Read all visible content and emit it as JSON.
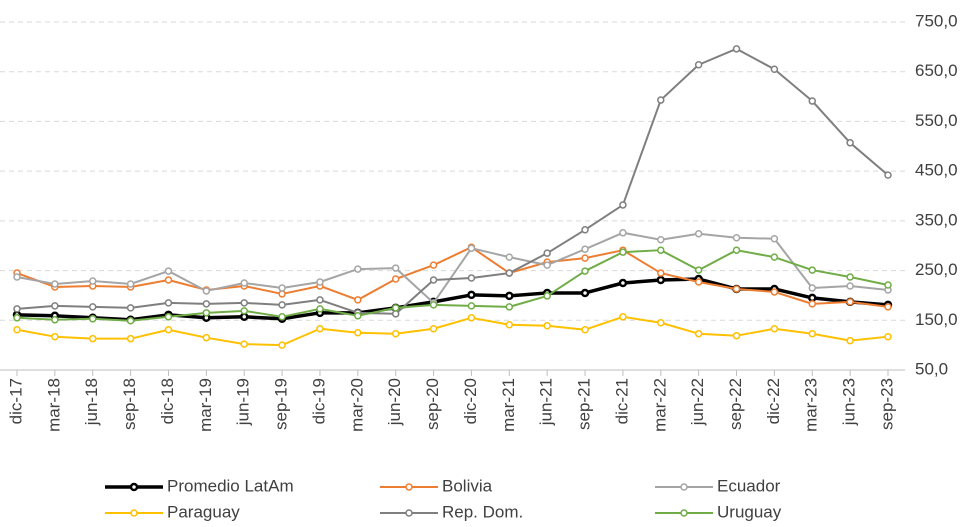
{
  "chart_data": {
    "type": "line",
    "categories": [
      "dic-17",
      "mar-18",
      "jun-18",
      "sep-18",
      "dic-18",
      "mar-19",
      "jun-19",
      "sep-19",
      "dic-19",
      "mar-20",
      "jun-20",
      "sep-20",
      "dic-20",
      "mar-21",
      "jun-21",
      "sep-21",
      "dic-21",
      "mar-22",
      "jun-22",
      "sep-22",
      "dic-22",
      "mar-23",
      "jun-23",
      "sep-23"
    ],
    "series": [
      {
        "name": "Promedio LatAm",
        "color": "#000000",
        "values": [
          161,
          159,
          155,
          151,
          161,
          155,
          157,
          153,
          165,
          165,
          175,
          187,
          201,
          199,
          205,
          205,
          225,
          231,
          233,
          213,
          213,
          195,
          187,
          181
        ]
      },
      {
        "name": "Bolivia",
        "color": "#ed7d31",
        "values": [
          245,
          217,
          219,
          217,
          231,
          211,
          219,
          203,
          219,
          191,
          233,
          261,
          297,
          245,
          267,
          275,
          291,
          245,
          227,
          213,
          207,
          183,
          187,
          177
        ]
      },
      {
        "name": "Ecuador",
        "color": "#a5a5a5",
        "values": [
          237,
          223,
          229,
          223,
          249,
          209,
          225,
          215,
          227,
          253,
          255,
          185,
          295,
          277,
          261,
          293,
          326,
          312,
          324,
          316,
          314,
          215,
          219,
          211
        ]
      },
      {
        "name": "Paraguay",
        "color": "#ffc000",
        "values": [
          131,
          117,
          113,
          113,
          131,
          115,
          102,
          100,
          133,
          125,
          123,
          133,
          155,
          141,
          139,
          131,
          157,
          145,
          123,
          119,
          133,
          123,
          109,
          117
        ]
      },
      {
        "name": "Rep. Dom.",
        "color": "#7f7f7f",
        "values": [
          173,
          179,
          177,
          175,
          185,
          183,
          185,
          181,
          191,
          165,
          163,
          231,
          235,
          245,
          285,
          332,
          382,
          593,
          664,
          696,
          655,
          591,
          507,
          442
        ]
      },
      {
        "name": "Uruguay",
        "color": "#70ad47",
        "values": [
          155,
          151,
          153,
          149,
          157,
          165,
          169,
          157,
          173,
          159,
          175,
          181,
          179,
          177,
          199,
          249,
          287,
          291,
          251,
          291,
          277,
          251,
          237,
          221
        ]
      }
    ],
    "ylim": [
      50,
      750
    ],
    "yticks": [
      {
        "value": 50,
        "label": "50,0"
      },
      {
        "value": 150,
        "label": "150,0"
      },
      {
        "value": 250,
        "label": "250,0"
      },
      {
        "value": 350,
        "label": "350,0"
      },
      {
        "value": 450,
        "label": "450,0"
      },
      {
        "value": 550,
        "label": "550,0"
      },
      {
        "value": 650,
        "label": "650,0"
      },
      {
        "value": 750,
        "label": "750,0"
      }
    ],
    "grid": true,
    "legend": "bottom"
  }
}
